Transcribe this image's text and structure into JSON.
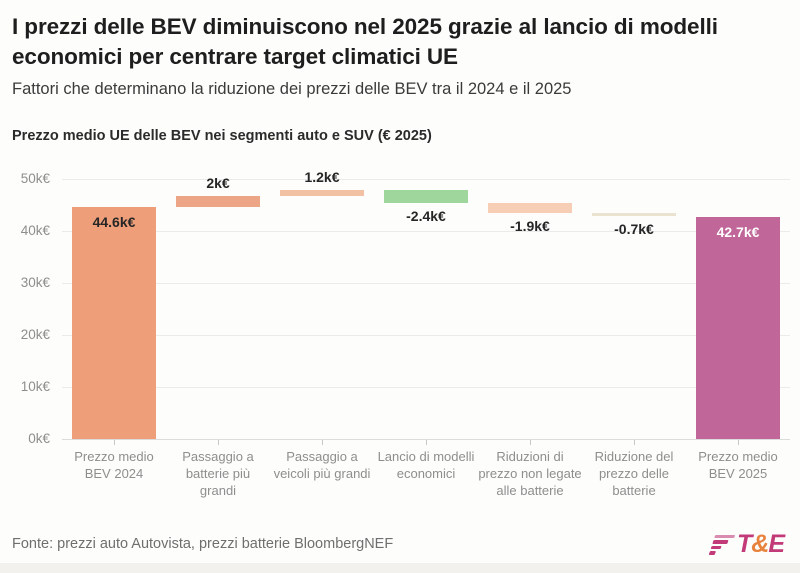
{
  "header": {
    "title": "I prezzi delle BEV diminuiscono nel 2025 grazie al lancio di modelli economici per centrare target climatici UE",
    "subtitle": "Fattori che determinano la riduzione dei prezzi delle BEV tra il 2024 e il 2025"
  },
  "chart_title": "Prezzo medio UE delle BEV nei segmenti auto e SUV (€ 2025)",
  "chart_data": {
    "type": "bar",
    "subtype": "waterfall",
    "unit": "thousands of € (2025)",
    "ylim": [
      0,
      52
    ],
    "yticks": [
      0,
      10,
      20,
      30,
      40,
      50
    ],
    "ytick_labels": [
      "0k€",
      "10k€",
      "20k€",
      "30k€",
      "40k€",
      "50k€"
    ],
    "grid": true,
    "bars": [
      {
        "category": "Prezzo medio BEV 2024",
        "value": 44.6,
        "kind": "total",
        "value_label": "44.6k€",
        "label_placement": "inside-top",
        "color": "#ee9f79",
        "label_color": "#262626"
      },
      {
        "category": "Passaggio a batterie più grandi",
        "value": 2,
        "kind": "delta",
        "value_label": "2k€",
        "label_placement": "above",
        "color": "#eda685",
        "label_color": "#262626"
      },
      {
        "category": "Passaggio a veicoli più grandi",
        "value": 1.2,
        "kind": "delta",
        "value_label": "1.2k€",
        "label_placement": "above",
        "color": "#f2c0a3",
        "label_color": "#262626"
      },
      {
        "category": "Lancio di modelli economici",
        "value": -2.4,
        "kind": "delta",
        "value_label": "-2.4k€",
        "label_placement": "below",
        "color": "#9ed69b",
        "label_color": "#262626"
      },
      {
        "category": "Riduzioni di prezzo non legate alle batterie",
        "value": -1.9,
        "kind": "delta",
        "value_label": "-1.9k€",
        "label_placement": "below",
        "color": "#f6ceb5",
        "label_color": "#262626"
      },
      {
        "category": "Riduzione del prezzo delle batterie",
        "value": -0.7,
        "kind": "delta",
        "value_label": "-0.7k€",
        "label_placement": "below",
        "color": "#eae3d0",
        "label_color": "#262626"
      },
      {
        "category": "Prezzo medio BEV 2025",
        "value": 42.7,
        "kind": "total",
        "value_label": "42.7k€",
        "label_placement": "inside-top",
        "color": "#c06698",
        "label_color": "#ffffff"
      }
    ]
  },
  "footer": {
    "source": "Fonte: prezzi auto Autovista, prezzi batterie BloombergNEF",
    "logo": {
      "t": "T",
      "amp": "&",
      "e": "E"
    }
  },
  "colors": {
    "logo_magenta": "#c23a78",
    "logo_orange": "#e8833e",
    "logo_mark_light": "#d98cb0"
  }
}
